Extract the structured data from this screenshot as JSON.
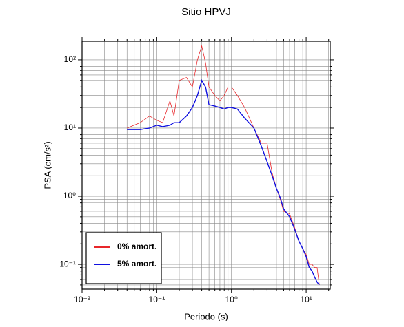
{
  "chart_data": {
    "type": "line",
    "title": "Sitio HPVJ",
    "x_label": "Periodo (s)",
    "y_label": "PSA (cm/s²)",
    "x_scale": "log",
    "y_scale": "log",
    "grid": true,
    "legend_location": "lower left",
    "xlim": [
      0.01,
      21
    ],
    "ylim": [
      0.0434,
      187
    ],
    "xticks": [
      {
        "value": 0.01,
        "label": "10⁻²"
      },
      {
        "value": 0.1,
        "label": "10⁻¹"
      },
      {
        "value": 1,
        "label": "10⁰"
      },
      {
        "value": 10,
        "label": "10¹"
      }
    ],
    "yticks": [
      {
        "value": 0.1,
        "label": "10⁻¹"
      },
      {
        "value": 1,
        "label": "10⁰"
      },
      {
        "value": 10,
        "label": "10¹"
      },
      {
        "value": 100,
        "label": "10²"
      }
    ],
    "x_minor_ticks": [
      0.02,
      0.03,
      0.04,
      0.05,
      0.06,
      0.07,
      0.08,
      0.09,
      0.2,
      0.3,
      0.4,
      0.5,
      0.6,
      0.7,
      0.8,
      0.9,
      2,
      3,
      4,
      5,
      6,
      7,
      8,
      9,
      20
    ],
    "y_minor_ticks": [
      0.05,
      0.06,
      0.07,
      0.08,
      0.09,
      0.2,
      0.3,
      0.4,
      0.5,
      0.6,
      0.7,
      0.8,
      0.9,
      2,
      3,
      4,
      5,
      6,
      7,
      8,
      9,
      20,
      30,
      40,
      50,
      60,
      70,
      80,
      90
    ],
    "x": [
      0.04,
      0.06,
      0.08,
      0.1,
      0.12,
      0.15,
      0.17,
      0.2,
      0.25,
      0.3,
      0.35,
      0.4,
      0.45,
      0.5,
      0.6,
      0.7,
      0.8,
      0.9,
      1.0,
      1.2,
      1.5,
      2,
      2.5,
      3,
      3.5,
      4,
      4.5,
      5,
      6,
      7,
      8,
      9,
      10,
      11,
      12,
      13,
      14,
      15
    ],
    "series": [
      {
        "name": "0% amort.",
        "color": "#e8262a",
        "values": [
          10,
          12,
          15,
          13,
          12,
          25,
          15,
          50,
          55,
          40,
          100,
          160,
          90,
          40,
          30,
          25,
          30,
          40,
          40,
          30,
          20,
          10,
          6,
          6,
          2.2,
          1.3,
          0.9,
          0.6,
          0.55,
          0.35,
          0.22,
          0.17,
          0.14,
          0.1,
          0.1,
          0.09,
          0.09,
          0.05
        ]
      },
      {
        "name": "5% amort.",
        "color": "#1010e0",
        "values": [
          9.5,
          9.5,
          10,
          11,
          10.5,
          11,
          12,
          12,
          15,
          20,
          30,
          50,
          40,
          22,
          21,
          20,
          19,
          20,
          20,
          19,
          14,
          10,
          5.5,
          3.2,
          2.0,
          1.3,
          0.95,
          0.65,
          0.5,
          0.33,
          0.22,
          0.17,
          0.13,
          0.09,
          0.08,
          0.065,
          0.055,
          0.05
        ]
      }
    ]
  }
}
